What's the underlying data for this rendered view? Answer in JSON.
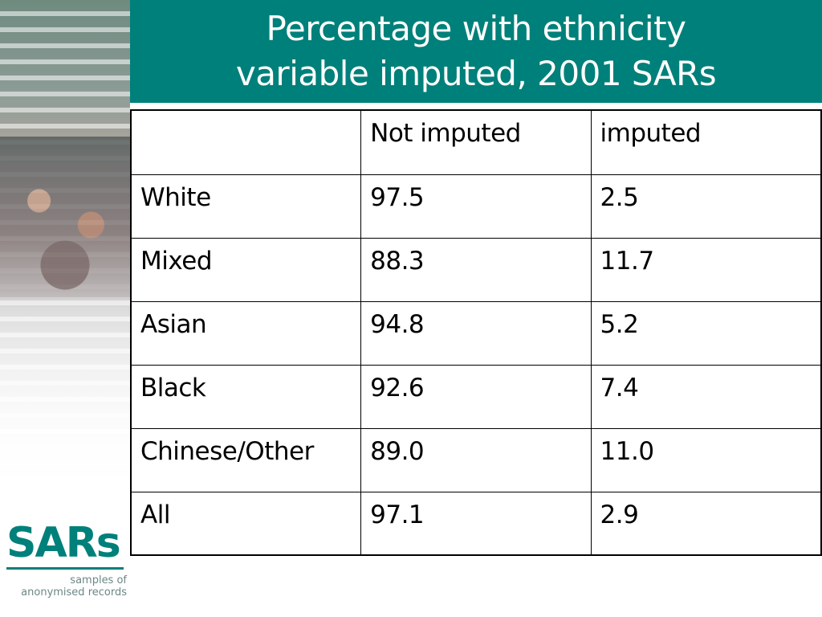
{
  "slide": {
    "title": "Percentage with ethnicity\nvariable imputed, 2001 SARs"
  },
  "table": {
    "header": [
      "",
      "Not imputed",
      "imputed"
    ],
    "rows": [
      [
        "White",
        "97.5",
        "2.5"
      ],
      [
        "Mixed",
        "88.3",
        "11.7"
      ],
      [
        "Asian",
        "94.8",
        "5.2"
      ],
      [
        "Black",
        "92.6",
        "7.4"
      ],
      [
        "Chinese/Other",
        "89.0",
        "11.0"
      ],
      [
        "All",
        "97.1",
        "2.9"
      ]
    ]
  },
  "logo": {
    "mark": "SARs",
    "tagline": "samples of\nanonymised records"
  },
  "colors": {
    "accent": "#00807a"
  }
}
